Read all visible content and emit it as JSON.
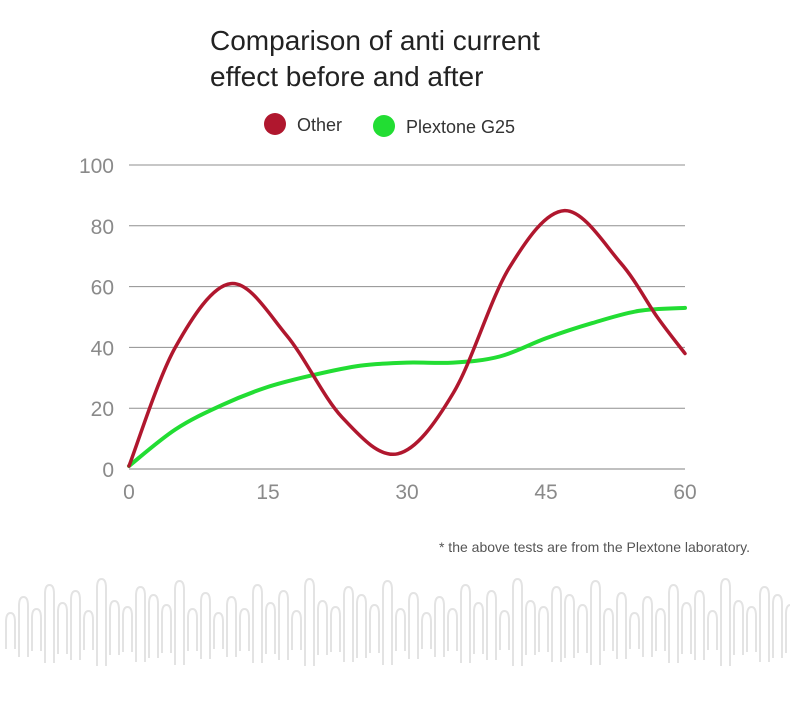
{
  "chart_data": {
    "type": "line",
    "title_lines": [
      "Comparison of anti current",
      "effect before and after"
    ],
    "xlabel": "",
    "ylabel": "",
    "xlim": [
      0,
      60
    ],
    "ylim": [
      0,
      100
    ],
    "x_ticks": [
      0,
      15,
      30,
      45,
      60
    ],
    "y_ticks": [
      0,
      20,
      40,
      60,
      80,
      100
    ],
    "grid": true,
    "legend_position": "top-center",
    "series": [
      {
        "name": "Other",
        "color": "#b0172e",
        "x": [
          0,
          5,
          11,
          17,
          23,
          29,
          35,
          41,
          47,
          53,
          57,
          60
        ],
        "y": [
          1,
          40,
          61,
          44,
          17,
          5,
          25,
          66,
          85,
          68,
          50,
          38
        ]
      },
      {
        "name": "Plextone G25",
        "color": "#22dd33",
        "x": [
          0,
          5,
          10,
          15,
          20,
          25,
          30,
          35,
          40,
          45,
          50,
          55,
          60
        ],
        "y": [
          1,
          13,
          21,
          27,
          31,
          34,
          35,
          35,
          37,
          43,
          48,
          52,
          53
        ]
      }
    ],
    "footnote": "* the above tests are from the Plextone laboratory."
  },
  "decoration": {
    "wave_color": "#e3e3e3"
  }
}
